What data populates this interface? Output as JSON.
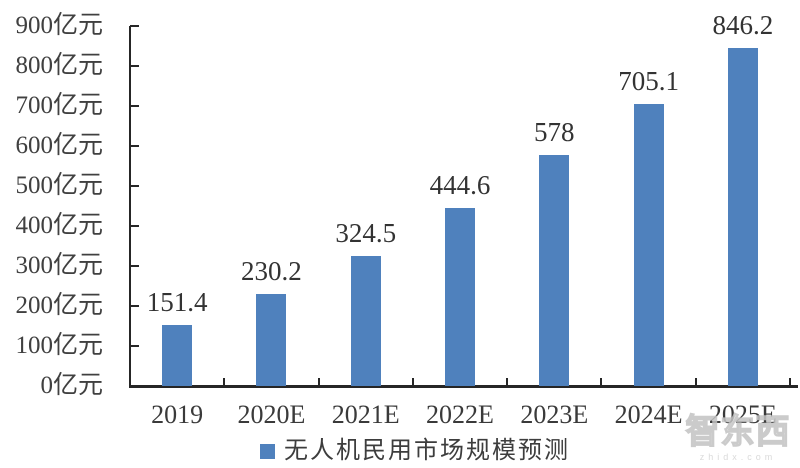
{
  "chart_data": {
    "type": "bar",
    "title": "",
    "xlabel": "",
    "ylabel": "",
    "categories": [
      "2019",
      "2020E",
      "2021E",
      "2022E",
      "2023E",
      "2024E",
      "2025E"
    ],
    "values": [
      151.4,
      230.2,
      324.5,
      444.6,
      578,
      705.1,
      846.2
    ],
    "value_labels": [
      "151.4",
      "230.2",
      "324.5",
      "444.6",
      "578",
      "705.1",
      "846.2"
    ],
    "ylim": [
      0,
      900
    ],
    "y_step": 100,
    "y_unit": "亿元",
    "y_tick_labels": [
      "0亿元",
      "100亿元",
      "200亿元",
      "300亿元",
      "400亿元",
      "500亿元",
      "600亿元",
      "700亿元",
      "800亿元",
      "900亿元"
    ],
    "grid": false,
    "legend": {
      "label": "无人机民用市场规模预测",
      "position": "bottom"
    },
    "colors": {
      "bar": "#4F81BD",
      "axis": "#262626"
    }
  },
  "watermark": {
    "logo_text": "智东西",
    "site_text": "zhidx.com"
  }
}
